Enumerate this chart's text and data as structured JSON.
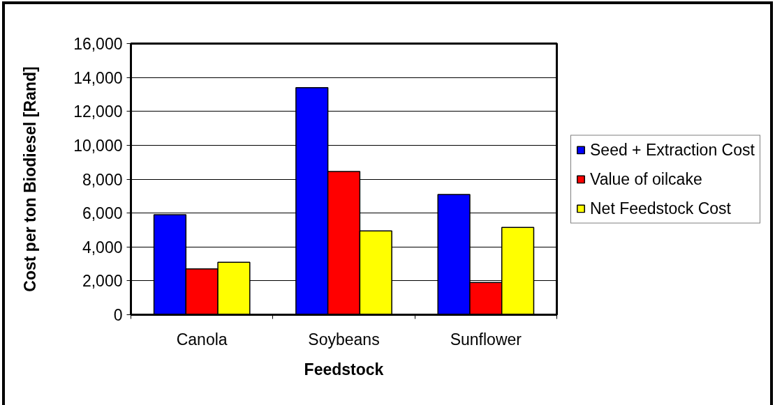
{
  "chart_data": {
    "type": "bar",
    "xlabel": "Feedstock",
    "ylabel": "Cost per ton Biodiesel [Rand]",
    "categories": [
      "Canola",
      "Soybeans",
      "Sunflower"
    ],
    "series": [
      {
        "name": "Seed + Extraction Cost",
        "color": "#0000ff",
        "values": [
          5900,
          13400,
          7100
        ]
      },
      {
        "name": "Value of oilcake",
        "color": "#ff0000",
        "values": [
          2700,
          8450,
          1900
        ]
      },
      {
        "name": "Net Feedstock Cost",
        "color": "#ffff00",
        "values": [
          3100,
          4950,
          5150
        ]
      }
    ],
    "ylim": [
      0,
      16000
    ],
    "yticks": [
      0,
      {
        "value": 2000,
        "label": "2,000"
      },
      {
        "value": 4000,
        "label": "4,000"
      },
      {
        "value": 6000,
        "label": "6,000"
      },
      {
        "value": 8000,
        "label": "8,000"
      },
      {
        "value": 10000,
        "label": "10,000"
      },
      {
        "value": 12000,
        "label": "12,000"
      },
      {
        "value": 14000,
        "label": "14,000"
      },
      {
        "value": 16000,
        "label": "16,000"
      }
    ],
    "grid": "y",
    "legend": "right"
  }
}
